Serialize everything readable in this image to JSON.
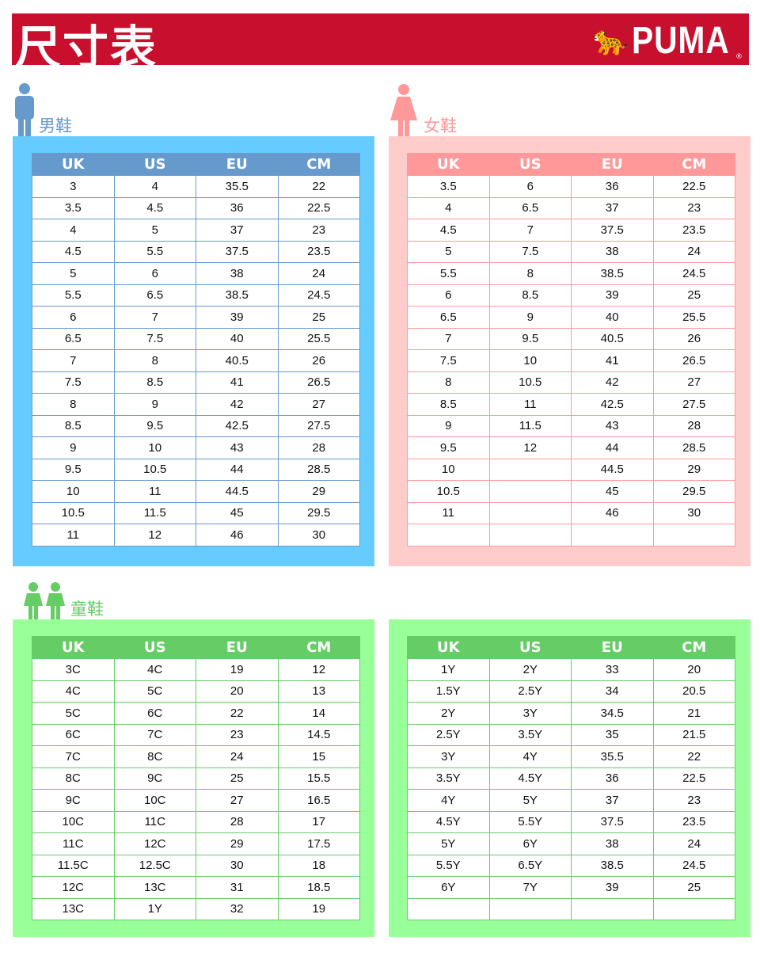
{
  "header": {
    "title": "尺寸表",
    "brand": "PUMA",
    "brand_mark": "®"
  },
  "colors": {
    "banner": "#c8102e",
    "men_panel": "#66ccff",
    "men_header": "#6699cc",
    "women_panel": "#ffcccc",
    "women_header": "#ff9999",
    "kids_panel": "#99ff99",
    "kids_header": "#66cc66"
  },
  "columns": [
    "UK",
    "US",
    "EU",
    "CM"
  ],
  "men": {
    "label": "男鞋",
    "icon": "man-icon",
    "rows": [
      [
        "3",
        "4",
        "35.5",
        "22"
      ],
      [
        "3.5",
        "4.5",
        "36",
        "22.5"
      ],
      [
        "4",
        "5",
        "37",
        "23"
      ],
      [
        "4.5",
        "5.5",
        "37.5",
        "23.5"
      ],
      [
        "5",
        "6",
        "38",
        "24"
      ],
      [
        "5.5",
        "6.5",
        "38.5",
        "24.5"
      ],
      [
        "6",
        "7",
        "39",
        "25"
      ],
      [
        "6.5",
        "7.5",
        "40",
        "25.5"
      ],
      [
        "7",
        "8",
        "40.5",
        "26"
      ],
      [
        "7.5",
        "8.5",
        "41",
        "26.5"
      ],
      [
        "8",
        "9",
        "42",
        "27"
      ],
      [
        "8.5",
        "9.5",
        "42.5",
        "27.5"
      ],
      [
        "9",
        "10",
        "43",
        "28"
      ],
      [
        "9.5",
        "10.5",
        "44",
        "28.5"
      ],
      [
        "10",
        "11",
        "44.5",
        "29"
      ],
      [
        "10.5",
        "11.5",
        "45",
        "29.5"
      ],
      [
        "11",
        "12",
        "46",
        "30"
      ]
    ]
  },
  "women": {
    "label": "女鞋",
    "icon": "woman-icon",
    "rows": [
      [
        "3.5",
        "6",
        "36",
        "22.5"
      ],
      [
        "4",
        "6.5",
        "37",
        "23"
      ],
      [
        "4.5",
        "7",
        "37.5",
        "23.5"
      ],
      [
        "5",
        "7.5",
        "38",
        "24"
      ],
      [
        "5.5",
        "8",
        "38.5",
        "24.5"
      ],
      [
        "6",
        "8.5",
        "39",
        "25"
      ],
      [
        "6.5",
        "9",
        "40",
        "25.5"
      ],
      [
        "7",
        "9.5",
        "40.5",
        "26"
      ],
      [
        "7.5",
        "10",
        "41",
        "26.5"
      ],
      [
        "8",
        "10.5",
        "42",
        "27"
      ],
      [
        "8.5",
        "11",
        "42.5",
        "27.5"
      ],
      [
        "9",
        "11.5",
        "43",
        "28"
      ],
      [
        "9.5",
        "12",
        "44",
        "28.5"
      ],
      [
        "10",
        "",
        "44.5",
        "29"
      ],
      [
        "10.5",
        "",
        "45",
        "29.5"
      ],
      [
        "11",
        "",
        "46",
        "30"
      ],
      [
        "",
        "",
        "",
        ""
      ]
    ]
  },
  "kids": {
    "label": "童鞋",
    "icon": "children-icon",
    "rows": [
      [
        "3C",
        "4C",
        "19",
        "12"
      ],
      [
        "4C",
        "5C",
        "20",
        "13"
      ],
      [
        "5C",
        "6C",
        "22",
        "14"
      ],
      [
        "6C",
        "7C",
        "23",
        "14.5"
      ],
      [
        "7C",
        "8C",
        "24",
        "15"
      ],
      [
        "8C",
        "9C",
        "25",
        "15.5"
      ],
      [
        "9C",
        "10C",
        "27",
        "16.5"
      ],
      [
        "10C",
        "11C",
        "28",
        "17"
      ],
      [
        "11C",
        "12C",
        "29",
        "17.5"
      ],
      [
        "11.5C",
        "12.5C",
        "30",
        "18"
      ],
      [
        "12C",
        "13C",
        "31",
        "18.5"
      ],
      [
        "13C",
        "1Y",
        "32",
        "19"
      ]
    ]
  },
  "youth": {
    "rows": [
      [
        "1Y",
        "2Y",
        "33",
        "20"
      ],
      [
        "1.5Y",
        "2.5Y",
        "34",
        "20.5"
      ],
      [
        "2Y",
        "3Y",
        "34.5",
        "21"
      ],
      [
        "2.5Y",
        "3.5Y",
        "35",
        "21.5"
      ],
      [
        "3Y",
        "4Y",
        "35.5",
        "22"
      ],
      [
        "3.5Y",
        "4.5Y",
        "36",
        "22.5"
      ],
      [
        "4Y",
        "5Y",
        "37",
        "23"
      ],
      [
        "4.5Y",
        "5.5Y",
        "37.5",
        "23.5"
      ],
      [
        "5Y",
        "6Y",
        "38",
        "24"
      ],
      [
        "5.5Y",
        "6.5Y",
        "38.5",
        "24.5"
      ],
      [
        "6Y",
        "7Y",
        "39",
        "25"
      ],
      [
        "",
        "",
        "",
        ""
      ]
    ]
  }
}
